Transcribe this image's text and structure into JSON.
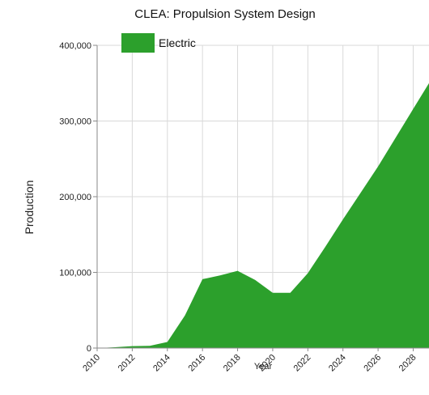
{
  "chart_data": {
    "type": "area",
    "title": "CLEA: Propulsion System Design",
    "xlabel": "Year",
    "ylabel": "Production",
    "xlim": [
      2010,
      2028.9
    ],
    "ylim": [
      0,
      400000
    ],
    "x_ticks": [
      "2010",
      "2012",
      "2014",
      "2016",
      "2018",
      "2020",
      "2022",
      "2024",
      "2026",
      "2028"
    ],
    "y_ticks": [
      "0",
      "100,000",
      "200,000",
      "300,000",
      "400,000"
    ],
    "grid": true,
    "legend_position": "top-left",
    "series": [
      {
        "name": "Electric",
        "color": "#2ca02c",
        "x": [
          2010,
          2011,
          2012,
          2013,
          2014,
          2015,
          2016,
          2017,
          2018,
          2019,
          2020,
          2021,
          2022,
          2023,
          2024,
          2025,
          2026,
          2027,
          2028,
          2028.9
        ],
        "values": [
          0,
          1000,
          2500,
          3000,
          8000,
          43000,
          91000,
          96000,
          102000,
          90000,
          73000,
          73000,
          99000,
          134000,
          170000,
          205000,
          240000,
          278000,
          316000,
          350000
        ]
      }
    ]
  }
}
